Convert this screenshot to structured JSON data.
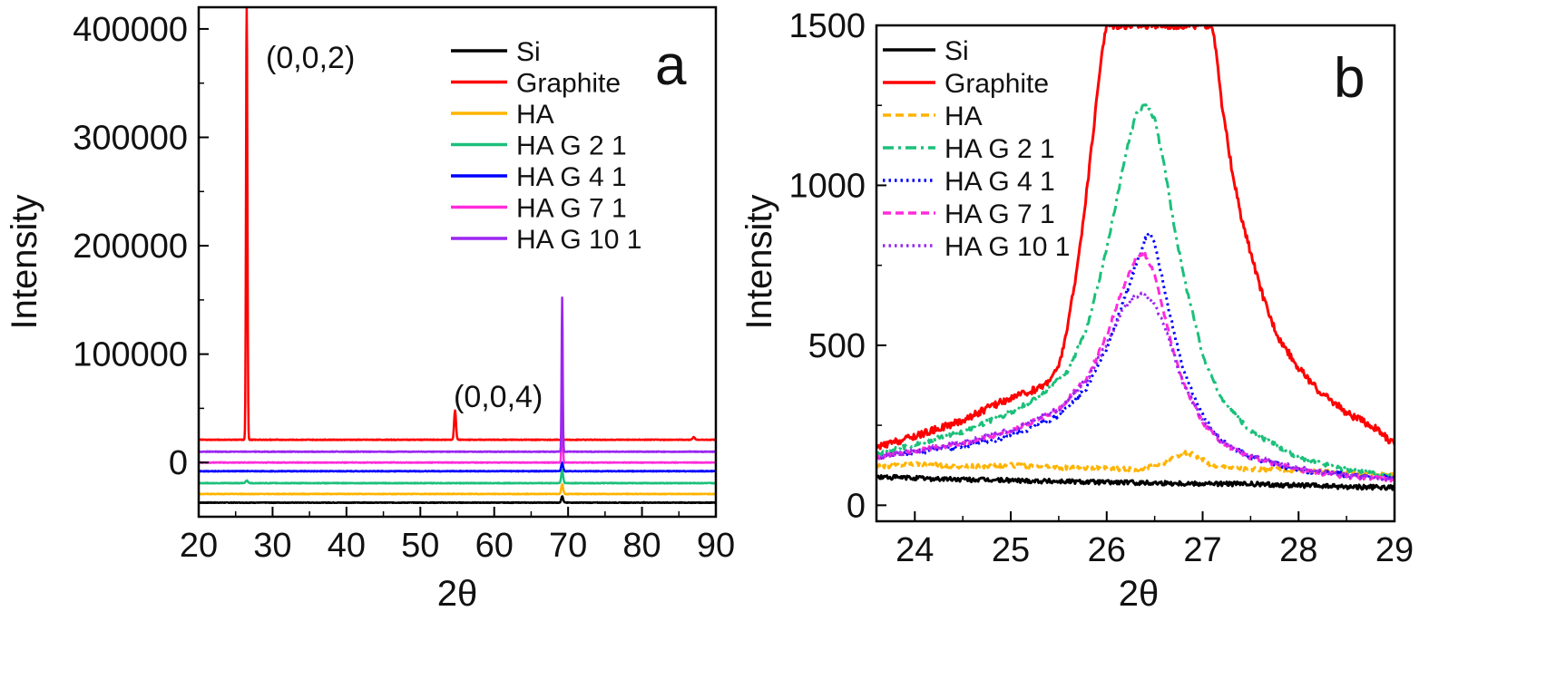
{
  "chart_data": [
    {
      "panel": "a",
      "type": "line",
      "xlabel": "2θ",
      "ylabel": "Intensity",
      "xlim": [
        20,
        90
      ],
      "ylim": [
        -50000,
        420000
      ],
      "xticks": [
        20,
        30,
        40,
        50,
        60,
        70,
        80,
        90
      ],
      "yticks": [
        0,
        100000,
        200000,
        300000,
        400000
      ],
      "annotations": [
        {
          "text": "(0,0,2)",
          "x": 27.5,
          "y": 397000
        },
        {
          "text": "(0,0,4)",
          "x": 51.5,
          "y": 66000
        }
      ],
      "legend_position": "top-right",
      "series": [
        {
          "name": "Si",
          "color": "#000000",
          "style": "solid",
          "baseline": -37000,
          "peaks": [
            {
              "x": 69.2,
              "height": 6000,
              "width": 0.25
            }
          ]
        },
        {
          "name": "Graphite",
          "color": "#ff0000",
          "style": "solid",
          "baseline": 21000,
          "peaks": [
            {
              "x": 26.5,
              "height": 420000,
              "width": 0.18
            },
            {
              "x": 54.7,
              "height": 27000,
              "width": 0.25
            },
            {
              "x": 87.0,
              "height": 2500,
              "width": 0.3
            }
          ]
        },
        {
          "name": "HA",
          "color": "#ffb400",
          "style": "solid",
          "baseline": -29000,
          "peaks": [
            {
              "x": 69.2,
              "height": 9000,
              "width": 0.25
            }
          ]
        },
        {
          "name": "HA G 2 1",
          "color": "#1bc07a",
          "style": "solid",
          "baseline": -19000,
          "peaks": [
            {
              "x": 26.5,
              "height": 2500,
              "width": 0.3
            },
            {
              "x": 69.2,
              "height": 12000,
              "width": 0.25
            }
          ]
        },
        {
          "name": "HA G 4 1",
          "color": "#0000ff",
          "style": "solid",
          "baseline": -8000,
          "peaks": [
            {
              "x": 69.2,
              "height": 8000,
              "width": 0.25
            }
          ]
        },
        {
          "name": "HA G 7 1",
          "color": "#ff2cdb",
          "style": "solid",
          "baseline": 0,
          "peaks": [
            {
              "x": 69.2,
              "height": 90000,
              "width": 0.15
            }
          ]
        },
        {
          "name": "HA G 10 1",
          "color": "#9b26f0",
          "style": "solid",
          "baseline": 10000,
          "peaks": [
            {
              "x": 69.2,
              "height": 142000,
              "width": 0.15
            }
          ]
        }
      ]
    },
    {
      "panel": "b",
      "type": "line",
      "xlabel": "2θ",
      "ylabel": "Intensity",
      "xlim": [
        23.6,
        29
      ],
      "ylim": [
        -50,
        1500
      ],
      "xticks": [
        24,
        25,
        26,
        27,
        28,
        29
      ],
      "yticks": [
        0,
        500,
        1000,
        1500
      ],
      "legend_position": "top-left",
      "series": [
        {
          "name": "Si",
          "color": "#000000",
          "style": "solid",
          "x": [
            23.6,
            24.0,
            24.5,
            25.0,
            25.5,
            26.0,
            26.5,
            27.0,
            27.5,
            28.0,
            28.5,
            29.0
          ],
          "y": [
            88,
            85,
            80,
            78,
            75,
            72,
            70,
            68,
            66,
            62,
            58,
            55
          ]
        },
        {
          "name": "Graphite",
          "color": "#ff0000",
          "style": "solid",
          "x": [
            23.6,
            24.0,
            24.5,
            24.8,
            25.0,
            25.2,
            25.35,
            25.5,
            25.6,
            25.7,
            25.8,
            25.9,
            25.95,
            26.0,
            27.1,
            27.15,
            27.2,
            27.3,
            27.4,
            27.5,
            27.6,
            27.7,
            27.8,
            28.0,
            28.2,
            28.5,
            28.8,
            29.0
          ],
          "y": [
            180,
            215,
            265,
            310,
            335,
            355,
            375,
            430,
            570,
            760,
            1000,
            1280,
            1420,
            1500,
            1500,
            1390,
            1250,
            1060,
            900,
            790,
            680,
            590,
            520,
            430,
            360,
            290,
            240,
            190
          ]
        },
        {
          "name": "HA",
          "color": "#ffb400",
          "style": "dashed",
          "x": [
            23.6,
            24.0,
            24.5,
            25.0,
            25.5,
            26.0,
            26.3,
            26.6,
            26.8,
            26.9,
            27.1,
            27.5,
            28.0,
            28.5,
            29.0
          ],
          "y": [
            120,
            130,
            120,
            125,
            118,
            115,
            112,
            130,
            165,
            160,
            125,
            112,
            110,
            100,
            95
          ]
        },
        {
          "name": "HA G 2 1",
          "color": "#1bc07a",
          "style": "dashdot",
          "x": [
            23.6,
            24.0,
            24.5,
            25.0,
            25.3,
            25.6,
            25.8,
            26.0,
            26.1,
            26.2,
            26.3,
            26.4,
            26.5,
            26.6,
            26.7,
            26.8,
            27.0,
            27.2,
            27.5,
            28.0,
            28.5,
            29.0
          ],
          "y": [
            160,
            190,
            230,
            290,
            340,
            420,
            560,
            800,
            950,
            1100,
            1220,
            1255,
            1210,
            1060,
            880,
            720,
            470,
            330,
            230,
            150,
            110,
            90
          ]
        },
        {
          "name": "HA G 4 1",
          "color": "#0000ff",
          "style": "dotted",
          "x": [
            23.6,
            24.0,
            24.5,
            25.0,
            25.5,
            25.8,
            26.0,
            26.1,
            26.2,
            26.3,
            26.4,
            26.45,
            26.5,
            26.6,
            26.7,
            26.8,
            27.0,
            27.2,
            27.5,
            28.0,
            28.5,
            29.0
          ],
          "y": [
            150,
            165,
            185,
            215,
            280,
            370,
            490,
            570,
            660,
            750,
            830,
            855,
            820,
            680,
            540,
            420,
            280,
            200,
            150,
            110,
            95,
            85
          ]
        },
        {
          "name": "HA G 7 1",
          "color": "#ff2cdb",
          "style": "dashed",
          "x": [
            23.6,
            24.0,
            24.5,
            25.0,
            25.5,
            25.8,
            26.0,
            26.1,
            26.2,
            26.3,
            26.4,
            26.5,
            26.6,
            26.7,
            26.8,
            27.0,
            27.2,
            27.5,
            28.0,
            28.5,
            29.0
          ],
          "y": [
            150,
            170,
            195,
            230,
            300,
            400,
            530,
            620,
            700,
            770,
            785,
            720,
            600,
            480,
            380,
            260,
            195,
            150,
            110,
            90,
            80
          ]
        },
        {
          "name": "HA G 10 1",
          "color": "#9b26f0",
          "style": "dotted",
          "x": [
            23.6,
            24.0,
            24.5,
            25.0,
            25.5,
            25.8,
            26.0,
            26.1,
            26.2,
            26.3,
            26.4,
            26.5,
            26.6,
            26.7,
            26.8,
            27.0,
            27.2,
            27.5,
            28.0,
            28.5,
            29.0
          ],
          "y": [
            150,
            170,
            195,
            235,
            300,
            395,
            505,
            570,
            625,
            655,
            660,
            630,
            560,
            470,
            380,
            265,
            200,
            155,
            115,
            92,
            82
          ]
        }
      ]
    }
  ],
  "panel_labels": {
    "a": "a",
    "b": "b"
  }
}
